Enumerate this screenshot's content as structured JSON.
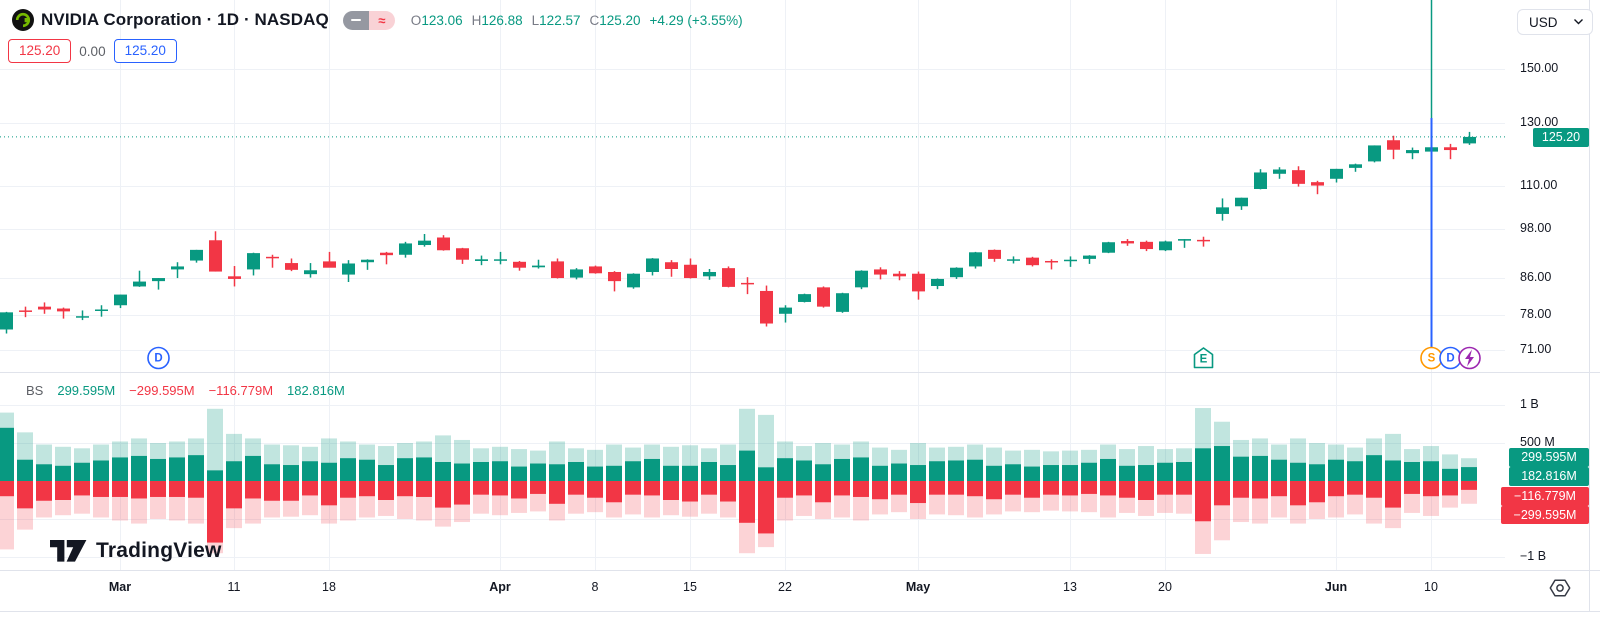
{
  "header": {
    "symbol_title": "NVIDIA Corporation · 1D · NASDAQ",
    "ohlc": {
      "o_label": "O",
      "o": "123.06",
      "h_label": "H",
      "h": "126.88",
      "l_label": "L",
      "l": "122.57",
      "c_label": "C",
      "c": "125.20",
      "change": "+4.29 (+3.55%)"
    },
    "price_boxes": {
      "red": "125.20",
      "middle": "0.00",
      "blue": "125.20"
    },
    "toggle_approx_glyph": "≈"
  },
  "currency_selector": {
    "value": "USD"
  },
  "price_axis": {
    "ticks": [
      {
        "label": "150.00",
        "value": 150
      },
      {
        "label": "130.00",
        "value": 130
      },
      {
        "label": "110.00",
        "value": 110
      },
      {
        "label": "98.00",
        "value": 98
      },
      {
        "label": "86.00",
        "value": 86
      },
      {
        "label": "78.00",
        "value": 78
      },
      {
        "label": "71.00",
        "value": 71
      }
    ],
    "last_price_badge": "125.20"
  },
  "volume_axis": {
    "ticks": [
      {
        "label": "1 B",
        "value": 1000
      },
      {
        "label": "500 M",
        "value": 500
      },
      {
        "label": "−1 B",
        "value": -1000
      }
    ],
    "badges": {
      "total_up": "299.595M",
      "buy": "182.816M",
      "sell": "−116.779M",
      "total_down": "−299.595M"
    }
  },
  "volume_legend": {
    "indicator": "BS",
    "values": [
      {
        "text": "299.595M",
        "color": "teal"
      },
      {
        "text": "−299.595M",
        "color": "red"
      },
      {
        "text": "−116.779M",
        "color": "red"
      },
      {
        "text": "182.816M",
        "color": "teal"
      }
    ]
  },
  "time_axis": {
    "ticks": [
      {
        "label": "Mar",
        "i": 6,
        "bold": true
      },
      {
        "label": "11",
        "i": 12,
        "bold": false
      },
      {
        "label": "18",
        "i": 17,
        "bold": false
      },
      {
        "label": "Apr",
        "i": 26,
        "bold": true
      },
      {
        "label": "8",
        "i": 31,
        "bold": false
      },
      {
        "label": "15",
        "i": 36,
        "bold": false
      },
      {
        "label": "22",
        "i": 41,
        "bold": false
      },
      {
        "label": "May",
        "i": 48,
        "bold": true
      },
      {
        "label": "13",
        "i": 56,
        "bold": false
      },
      {
        "label": "20",
        "i": 61,
        "bold": false
      },
      {
        "label": "Jun",
        "i": 70,
        "bold": true
      },
      {
        "label": "10",
        "i": 75,
        "bold": false
      }
    ]
  },
  "watermark": {
    "brand": "TradingView"
  },
  "chart_data": {
    "type": "candlestick",
    "title": "NVIDIA Corporation · 1D · NASDAQ",
    "price_scale": "log",
    "price_ticks": [
      150,
      130,
      110,
      98,
      86,
      78,
      71
    ],
    "last_price": 125.2,
    "last_change": "+4.29 (+3.55%)",
    "candles": [
      [
        75.0,
        78.6,
        74.2,
        78.5
      ],
      [
        78.9,
        79.7,
        77.5,
        78.8
      ],
      [
        79.7,
        80.6,
        78.2,
        79.1
      ],
      [
        79.3,
        79.5,
        77.2,
        78.7
      ],
      [
        77.6,
        78.9,
        76.9,
        77.7
      ],
      [
        79.0,
        80.0,
        77.6,
        79.1
      ],
      [
        80.0,
        82.3,
        79.4,
        82.3
      ],
      [
        84.1,
        87.7,
        84.0,
        85.2
      ],
      [
        85.3,
        86.0,
        83.4,
        86.0
      ],
      [
        88.0,
        89.7,
        86.0,
        88.7
      ],
      [
        90.1,
        92.7,
        89.6,
        92.7
      ],
      [
        95.1,
        97.4,
        87.5,
        87.5
      ],
      [
        86.4,
        88.8,
        84.1,
        85.8
      ],
      [
        88.0,
        92.0,
        86.6,
        91.9
      ],
      [
        91.0,
        91.5,
        88.4,
        90.9
      ],
      [
        89.5,
        90.6,
        87.6,
        87.9
      ],
      [
        86.9,
        89.5,
        86.1,
        87.8
      ],
      [
        89.9,
        92.2,
        88.5,
        88.4
      ],
      [
        86.8,
        90.2,
        85.1,
        89.4
      ],
      [
        89.7,
        90.4,
        87.9,
        90.3
      ],
      [
        92.0,
        92.2,
        89.2,
        91.4
      ],
      [
        91.5,
        94.7,
        90.8,
        94.3
      ],
      [
        93.9,
        96.7,
        93.5,
        95.0
      ],
      [
        95.8,
        96.4,
        92.5,
        92.6
      ],
      [
        93.1,
        93.2,
        89.3,
        90.3
      ],
      [
        90.0,
        91.3,
        89.0,
        90.4
      ],
      [
        90.3,
        92.2,
        89.2,
        90.4
      ],
      [
        89.8,
        90.0,
        87.7,
        88.4
      ],
      [
        88.5,
        90.3,
        88.2,
        88.9
      ],
      [
        89.9,
        90.6,
        85.9,
        86.0
      ],
      [
        86.1,
        88.3,
        85.7,
        88.0
      ],
      [
        88.7,
        88.9,
        87.0,
        87.1
      ],
      [
        87.4,
        87.6,
        83.0,
        85.3
      ],
      [
        83.9,
        87.1,
        83.6,
        87.0
      ],
      [
        87.4,
        90.7,
        86.6,
        90.6
      ],
      [
        89.7,
        90.2,
        86.3,
        88.1
      ],
      [
        89.1,
        90.6,
        85.9,
        86.0
      ],
      [
        86.4,
        88.1,
        85.6,
        87.4
      ],
      [
        88.3,
        88.7,
        83.9,
        84.0
      ],
      [
        84.9,
        86.2,
        82.4,
        84.6
      ],
      [
        83.1,
        84.3,
        75.6,
        76.2
      ],
      [
        78.2,
        80.0,
        76.4,
        79.5
      ],
      [
        80.7,
        82.5,
        80.6,
        82.4
      ],
      [
        83.9,
        84.1,
        79.5,
        79.7
      ],
      [
        78.6,
        82.7,
        78.4,
        82.6
      ],
      [
        83.9,
        87.8,
        83.5,
        87.7
      ],
      [
        88.0,
        88.5,
        85.7,
        86.8
      ],
      [
        87.0,
        87.6,
        85.5,
        86.4
      ],
      [
        87.0,
        87.5,
        81.2,
        83.0
      ],
      [
        84.2,
        85.9,
        83.5,
        85.8
      ],
      [
        86.2,
        88.5,
        85.8,
        88.4
      ],
      [
        88.7,
        92.2,
        88.2,
        92.1
      ],
      [
        92.7,
        92.8,
        89.8,
        90.5
      ],
      [
        90.4,
        91.1,
        89.4,
        90.4
      ],
      [
        90.8,
        91.0,
        88.7,
        89.0
      ],
      [
        90.0,
        90.4,
        88.0,
        89.9
      ],
      [
        90.2,
        91.1,
        88.6,
        90.3
      ],
      [
        90.5,
        91.4,
        89.3,
        91.3
      ],
      [
        92.0,
        94.7,
        91.9,
        94.6
      ],
      [
        94.9,
        95.4,
        93.7,
        94.3
      ],
      [
        94.7,
        95.0,
        92.4,
        92.9
      ],
      [
        92.6,
        95.0,
        92.4,
        94.8
      ],
      [
        95.0,
        95.4,
        93.2,
        95.4
      ],
      [
        95.2,
        96.0,
        93.5,
        94.9
      ],
      [
        102.0,
        106.3,
        100.2,
        103.8
      ],
      [
        104.1,
        106.5,
        103.1,
        106.5
      ],
      [
        109.0,
        114.9,
        108.9,
        113.9
      ],
      [
        113.5,
        115.5,
        112.0,
        114.8
      ],
      [
        114.6,
        115.8,
        109.7,
        110.5
      ],
      [
        111.0,
        111.4,
        107.5,
        110.0
      ],
      [
        112.0,
        115.0,
        110.9,
        115.0
      ],
      [
        115.3,
        116.6,
        114.1,
        116.4
      ],
      [
        117.3,
        122.4,
        117.0,
        122.4
      ],
      [
        124.1,
        125.6,
        118.0,
        121.0
      ],
      [
        119.9,
        121.7,
        118.0,
        120.9
      ],
      [
        120.4,
        123.1,
        117.0,
        121.8
      ],
      [
        121.8,
        122.9,
        118.0,
        120.9
      ],
      [
        123.06,
        126.88,
        122.57,
        125.2
      ]
    ],
    "volume": {
      "type": "bar",
      "series": "BS buy/sell volume (millions, total & buy)",
      "ylim_millions": [
        -1200,
        1200
      ],
      "values": [
        [
          900,
          700
        ],
        [
          640,
          280
        ],
        [
          480,
          220
        ],
        [
          450,
          200
        ],
        [
          430,
          240
        ],
        [
          480,
          270
        ],
        [
          520,
          310
        ],
        [
          560,
          330
        ],
        [
          500,
          290
        ],
        [
          520,
          310
        ],
        [
          560,
          340
        ],
        [
          950,
          140
        ],
        [
          620,
          260
        ],
        [
          560,
          330
        ],
        [
          480,
          220
        ],
        [
          470,
          210
        ],
        [
          450,
          260
        ],
        [
          560,
          240
        ],
        [
          520,
          300
        ],
        [
          480,
          280
        ],
        [
          460,
          210
        ],
        [
          500,
          300
        ],
        [
          520,
          310
        ],
        [
          600,
          250
        ],
        [
          540,
          230
        ],
        [
          430,
          250
        ],
        [
          450,
          260
        ],
        [
          420,
          190
        ],
        [
          400,
          230
        ],
        [
          520,
          220
        ],
        [
          430,
          250
        ],
        [
          410,
          190
        ],
        [
          480,
          200
        ],
        [
          440,
          260
        ],
        [
          480,
          290
        ],
        [
          450,
          200
        ],
        [
          470,
          200
        ],
        [
          430,
          250
        ],
        [
          480,
          210
        ],
        [
          950,
          400
        ],
        [
          870,
          180
        ],
        [
          520,
          300
        ],
        [
          460,
          270
        ],
        [
          500,
          220
        ],
        [
          480,
          290
        ],
        [
          520,
          310
        ],
        [
          440,
          200
        ],
        [
          410,
          230
        ],
        [
          500,
          210
        ],
        [
          440,
          260
        ],
        [
          450,
          270
        ],
        [
          480,
          280
        ],
        [
          440,
          200
        ],
        [
          400,
          220
        ],
        [
          410,
          190
        ],
        [
          390,
          210
        ],
        [
          400,
          210
        ],
        [
          410,
          240
        ],
        [
          480,
          290
        ],
        [
          420,
          200
        ],
        [
          460,
          210
        ],
        [
          420,
          240
        ],
        [
          430,
          250
        ],
        [
          960,
          430
        ],
        [
          780,
          460
        ],
        [
          540,
          320
        ],
        [
          560,
          330
        ],
        [
          480,
          280
        ],
        [
          560,
          240
        ],
        [
          500,
          220
        ],
        [
          480,
          280
        ],
        [
          440,
          260
        ],
        [
          560,
          340
        ],
        [
          620,
          270
        ],
        [
          420,
          250
        ],
        [
          460,
          260
        ],
        [
          350,
          160
        ],
        [
          299.595,
          182.816
        ]
      ]
    },
    "markers": [
      {
        "glyph": "D",
        "kind": "dividend",
        "i": 8,
        "color": "#2962ff"
      },
      {
        "glyph": "E",
        "kind": "earnings",
        "i": 63,
        "color": "#089981"
      },
      {
        "glyph": "S",
        "kind": "split",
        "i": 75,
        "color": "#ff9800"
      },
      {
        "glyph": "D",
        "kind": "dividend",
        "i": 76,
        "color": "#2962ff"
      },
      {
        "glyph": "lightning",
        "kind": "announcement",
        "i": 77,
        "color": "#9c27b0"
      }
    ],
    "event_vline": {
      "i": 75,
      "top_color": "#089981",
      "bottom_color": "#2962ff"
    },
    "colors": {
      "up": "#089981",
      "down": "#f23645",
      "vol_up_faint": "rgba(8,153,129,0.25)",
      "vol_down_faint": "rgba(242,54,69,0.22)",
      "grid": "#eef1f6",
      "border": "#e0e3eb",
      "accent_blue": "#2962ff"
    }
  }
}
